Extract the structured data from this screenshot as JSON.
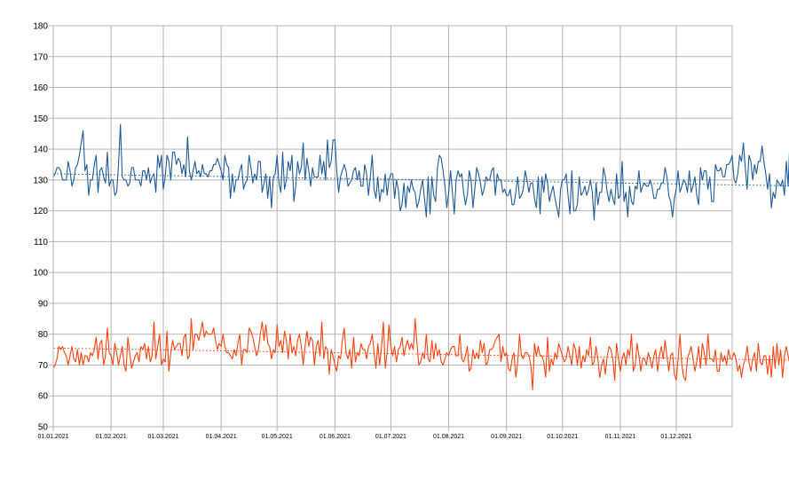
{
  "chart_data": {
    "type": "line",
    "title": "",
    "xlabel": "",
    "ylabel": "",
    "x_start": "01.01.2021",
    "x_end": "31.12.2021",
    "xlim": [
      "01.01.2021",
      "31.12.2021"
    ],
    "ylim": [
      50,
      180
    ],
    "y_ticks": [
      "180",
      "170",
      "160",
      "150",
      "140",
      "130",
      "120",
      "110",
      "100",
      "90",
      "80",
      "70",
      "60",
      "50"
    ],
    "x_ticks": [
      "01.01.2021",
      "01.02.2021",
      "01.03.2021",
      "01.04.2021",
      "01.05.2021",
      "01.06.2021",
      "01.07.2021",
      "01.08.2021",
      "01.09.2021",
      "01.10.2021",
      "01.11.2021",
      "01.12.2021"
    ],
    "grid": true,
    "legend": "none",
    "series": [
      {
        "color": "#1f5b99",
        "trend": [
          132,
          127
        ],
        "values": [
          131,
          132,
          134,
          134,
          133,
          130,
          130,
          130,
          136,
          133,
          128,
          130,
          134,
          135,
          138,
          142,
          146,
          133,
          135,
          125,
          130,
          130,
          135,
          138,
          126,
          133,
          134,
          131,
          129,
          139,
          128,
          130,
          130,
          125,
          126,
          135,
          148,
          131,
          130,
          130,
          128,
          129,
          134,
          134,
          130,
          130,
          130,
          128,
          133,
          133,
          130,
          134,
          129,
          131,
          132,
          126,
          138,
          134,
          138,
          127,
          131,
          138,
          136,
          130,
          139,
          139,
          135,
          137,
          136,
          132,
          135,
          131,
          144,
          133,
          130,
          133,
          136,
          132,
          133,
          131,
          135,
          132,
          132,
          131,
          133,
          133,
          135,
          135,
          137,
          135,
          133,
          130,
          138,
          135,
          134,
          124,
          132,
          126,
          130,
          130,
          133,
          135,
          127,
          129,
          130,
          138,
          134,
          129,
          132,
          130,
          136,
          136,
          126,
          129,
          132,
          124,
          131,
          121,
          131,
          132,
          138,
          129,
          126,
          139,
          127,
          130,
          136,
          133,
          138,
          123,
          128,
          136,
          132,
          134,
          142,
          130,
          137,
          133,
          128,
          134,
          131,
          131,
          131,
          138,
          132,
          136,
          130,
          143,
          134,
          136,
          143,
          143,
          133,
          126,
          131,
          133,
          135,
          133,
          128,
          129,
          130,
          133,
          134,
          130,
          133,
          128,
          128,
          135,
          132,
          125,
          131,
          138,
          127,
          124,
          131,
          123,
          127,
          126,
          132,
          125,
          130,
          132,
          132,
          124,
          130,
          127,
          120,
          122,
          129,
          121,
          128,
          126,
          130,
          127,
          126,
          121,
          123,
          127,
          130,
          124,
          118,
          131,
          119,
          131,
          125,
          123,
          134,
          138,
          137,
          133,
          128,
          121,
          126,
          133,
          126,
          119,
          130,
          133,
          131,
          132,
          126,
          122,
          125,
          133,
          130,
          121,
          127,
          134,
          132,
          129,
          125,
          127,
          131,
          130,
          130,
          133,
          134,
          125,
          132,
          130,
          130,
          126,
          127,
          125,
          125,
          127,
          122,
          122,
          126,
          131,
          124,
          125,
          127,
          133,
          130,
          126,
          129,
          129,
          124,
          121,
          131,
          119,
          131,
          126,
          132,
          129,
          123,
          126,
          128,
          124,
          121,
          118,
          127,
          130,
          130,
          132,
          125,
          119,
          133,
          120,
          120,
          122,
          131,
          125,
          126,
          128,
          125,
          127,
          130,
          126,
          117,
          129,
          122,
          126,
          126,
          134,
          131,
          126,
          123,
          127,
          124,
          122,
          132,
          124,
          125,
          136,
          123,
          126,
          118,
          128,
          123,
          122,
          128,
          127,
          133,
          126,
          128,
          129,
          128,
          128,
          130,
          128,
          124,
          124,
          127,
          127,
          129,
          129,
          134,
          131,
          125,
          123,
          118,
          124,
          127,
          133,
          126,
          128,
          130,
          129,
          126,
          133,
          126,
          128,
          131,
          125,
          122,
          134,
          130,
          133,
          133,
          127,
          131,
          123,
          123,
          135,
          133,
          133,
          134,
          131,
          131,
          135,
          135,
          136,
          138,
          130,
          129,
          132,
          138,
          136,
          142,
          134,
          127,
          138,
          136,
          130,
          135,
          132,
          136,
          136,
          141,
          136,
          132,
          127,
          132,
          121,
          126,
          124,
          130,
          129,
          128,
          130,
          125,
          136,
          128,
          144,
          131,
          136,
          134,
          137,
          126,
          123,
          131,
          129,
          139,
          134,
          137,
          133,
          133,
          131,
          126,
          140,
          140,
          136,
          135,
          126,
          131,
          136,
          127,
          127,
          130,
          139,
          127,
          122,
          124,
          136,
          132,
          118,
          127,
          120,
          124,
          136,
          119,
          118,
          140,
          127,
          126,
          135,
          120,
          132,
          142,
          129,
          132,
          136,
          120,
          127,
          133,
          130,
          135,
          132,
          123,
          134,
          133,
          129,
          130,
          128,
          129,
          128,
          125,
          124,
          122,
          122,
          122,
          124,
          128,
          126,
          130,
          129,
          126,
          127,
          127,
          126,
          124,
          127,
          126,
          130,
          128,
          121,
          126,
          134,
          125,
          129,
          128,
          129,
          124,
          125,
          132,
          133,
          127,
          129,
          127,
          126,
          134,
          129,
          133,
          125,
          123,
          133,
          131,
          133,
          137,
          132,
          132,
          123,
          126,
          123,
          129,
          127,
          128,
          119
        ]
      },
      {
        "color": "#ff420e",
        "trend": [
          75.5,
          70
        ],
        "values": [
          69,
          70,
          72,
          76,
          75,
          76,
          74,
          73,
          70,
          73,
          76,
          72,
          71,
          75,
          70,
          74,
          70,
          73,
          73,
          71,
          74,
          73,
          75,
          79,
          72,
          77,
          78,
          70,
          73,
          82,
          74,
          73,
          70,
          77,
          74,
          70,
          73,
          76,
          70,
          68,
          79,
          74,
          69,
          71,
          73,
          74,
          71,
          76,
          75,
          77,
          72,
          76,
          71,
          73,
          84,
          72,
          76,
          80,
          70,
          72,
          71,
          81,
          68,
          74,
          78,
          75,
          76,
          77,
          77,
          73,
          79,
          80,
          72,
          73,
          85,
          75,
          80,
          80,
          78,
          81,
          84,
          79,
          81,
          80,
          80,
          80,
          82,
          78,
          75,
          77,
          76,
          80,
          76,
          74,
          74,
          73,
          72,
          75,
          73,
          77,
          80,
          70,
          75,
          75,
          74,
          82,
          81,
          79,
          76,
          73,
          75,
          80,
          84,
          78,
          83,
          77,
          76,
          72,
          75,
          74,
          83,
          76,
          78,
          74,
          81,
          78,
          72,
          80,
          74,
          76,
          73,
          78,
          80,
          76,
          70,
          76,
          81,
          76,
          79,
          78,
          70,
          76,
          78,
          73,
          84,
          72,
          76,
          75,
          67,
          75,
          73,
          70,
          68,
          73,
          72,
          78,
          82,
          74,
          72,
          75,
          69,
          79,
          71,
          74,
          73,
          77,
          75,
          75,
          72,
          76,
          77,
          80,
          74,
          69,
          77,
          70,
          76,
          84,
          69,
          74,
          83,
          76,
          73,
          76,
          71,
          75,
          76,
          79,
          73,
          76,
          78,
          75,
          77,
          75,
          85,
          77,
          70,
          71,
          74,
          72,
          80,
          72,
          71,
          78,
          72,
          77,
          73,
          75,
          71,
          70,
          72,
          74,
          73,
          75,
          76,
          76,
          73,
          73,
          80,
          72,
          71,
          73,
          76,
          68,
          69,
          75,
          72,
          74,
          72,
          78,
          74,
          77,
          70,
          71,
          75,
          75,
          76,
          78,
          79,
          80,
          71,
          76,
          73,
          74,
          69,
          68,
          72,
          74,
          66,
          71,
          80,
          73,
          72,
          74,
          74,
          73,
          70,
          62,
          77,
          73,
          76,
          73,
          73,
          71,
          66,
          79,
          68,
          72,
          70,
          74,
          72,
          77,
          75,
          73,
          71,
          72,
          76,
          73,
          70,
          77,
          75,
          70,
          76,
          69,
          73,
          71,
          75,
          73,
          79,
          70,
          71,
          76,
          72,
          66,
          70,
          72,
          67,
          73,
          76,
          75,
          72,
          65,
          77,
          72,
          68,
          72,
          74,
          70,
          75,
          73,
          80,
          68,
          70,
          77,
          73,
          68,
          72,
          72,
          70,
          74,
          72,
          69,
          73,
          75,
          68,
          73,
          76,
          72,
          78,
          73,
          68,
          73,
          74,
          67,
          65,
          72,
          80,
          70,
          66,
          65,
          72,
          74,
          76,
          72,
          68,
          71,
          76,
          69,
          77,
          74,
          70,
          80,
          72,
          72,
          71,
          75,
          68,
          68,
          74,
          71,
          73,
          70,
          75,
          72,
          72,
          74,
          72,
          68,
          70,
          66,
          70,
          72,
          76,
          71,
          68,
          72,
          74,
          68,
          77,
          71,
          70,
          73,
          73,
          67,
          73,
          66,
          76,
          69,
          77,
          70,
          75,
          66,
          73,
          76,
          73,
          70,
          73,
          71,
          79,
          74,
          70,
          68,
          65,
          77,
          70,
          69,
          73,
          68,
          76,
          67,
          73,
          78,
          76,
          73,
          77,
          72,
          77,
          76,
          72,
          68,
          73,
          69,
          73,
          74,
          80,
          74,
          70,
          68,
          78,
          72,
          65,
          67,
          75,
          67,
          70,
          74,
          77,
          76,
          71,
          67,
          73,
          73,
          73,
          71,
          78,
          77,
          79,
          80,
          76,
          82,
          72,
          80,
          77,
          76,
          79,
          77,
          71,
          75,
          72,
          78,
          73,
          70,
          74,
          72,
          70,
          68,
          73,
          70,
          71,
          74,
          69,
          70,
          72,
          67,
          68,
          66,
          69,
          72,
          71,
          76,
          65,
          77,
          75,
          79,
          74,
          72,
          72,
          68,
          66,
          67,
          70,
          74,
          72,
          69,
          70,
          73,
          72,
          74,
          76,
          71,
          73,
          69,
          67,
          75,
          71,
          70,
          65,
          64,
          77,
          73,
          71,
          74,
          65,
          67,
          75,
          72,
          70,
          71,
          72,
          62,
          65,
          69,
          72,
          69,
          72,
          65,
          73,
          76,
          67,
          66,
          74,
          75,
          63,
          64,
          76,
          78,
          73,
          72,
          66,
          72,
          70,
          73,
          65,
          69,
          68,
          75,
          76,
          72,
          64,
          68,
          62,
          73,
          68
        ]
      }
    ]
  }
}
